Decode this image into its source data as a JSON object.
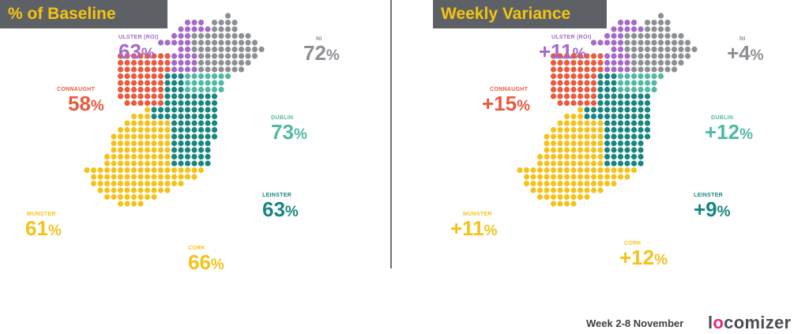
{
  "panels": {
    "left": {
      "title": "% of Baseline",
      "regions": {
        "ulster": {
          "name": "ULSTER (ROI)",
          "value": "63",
          "suffix": "%"
        },
        "ni": {
          "name": "NI",
          "value": "72",
          "suffix": "%"
        },
        "connaught": {
          "name": "CONNAUGHT",
          "value": "58",
          "suffix": "%"
        },
        "dublin": {
          "name": "DUBLIN",
          "value": "73",
          "suffix": "%"
        },
        "leinster": {
          "name": "LEINSTER",
          "value": "63",
          "suffix": "%"
        },
        "munster": {
          "name": "MUNSTER",
          "value": "61",
          "suffix": "%"
        },
        "cork": {
          "name": "CORK",
          "value": "66",
          "suffix": "%"
        }
      }
    },
    "right": {
      "title": "Weekly Variance",
      "regions": {
        "ulster": {
          "name": "ULSTER (ROI)",
          "value": "+11",
          "suffix": "%"
        },
        "ni": {
          "name": "NI",
          "value": "+4",
          "suffix": "%"
        },
        "connaught": {
          "name": "CONNAUGHT",
          "value": "+15",
          "suffix": "%"
        },
        "dublin": {
          "name": "DUBLIN",
          "value": "+12",
          "suffix": "%"
        },
        "leinster": {
          "name": "LEINSTER",
          "value": "+9",
          "suffix": "%"
        },
        "munster": {
          "name": "MUNSTER",
          "value": "+11",
          "suffix": "%"
        },
        "cork": {
          "name": "CORK",
          "value": "+12",
          "suffix": "%"
        }
      }
    }
  },
  "colors": {
    "ulster": "#a569c8",
    "ni": "#8c8f93",
    "connaught": "#ea5a3e",
    "dublin": "#4fb9a3",
    "leinster": "#178681",
    "munster": "#f5c21b",
    "cork": "#f5c21b",
    "title_bg": "#5d6166",
    "title_text": "#f4c40f"
  },
  "footer": {
    "week": "Week 2-8 November",
    "logo_a": "l",
    "logo_o": "o",
    "logo_b": "comizer"
  }
}
